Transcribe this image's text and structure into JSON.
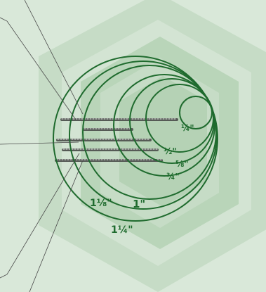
{
  "colors": {
    "background": "#d9e8d9",
    "hexagon_outer": "#c6dcc6",
    "hexagon_mid": "#b9d5b9",
    "hexagon_inner": "#aecdae",
    "ring_stroke": "#1f6b2e",
    "label_color": "#1f6b2e",
    "leader_line": "#4a4a4a",
    "wire_dark": "#555a55",
    "wire_light": "#f2f4f2"
  },
  "rings": [
    {
      "label": "¼\""
    },
    {
      "label": "½\""
    },
    {
      "label": "⅝\""
    },
    {
      "label": "¾\""
    },
    {
      "label": "1\""
    },
    {
      "label": "1⅛\""
    },
    {
      "label": "1¼\""
    }
  ]
}
